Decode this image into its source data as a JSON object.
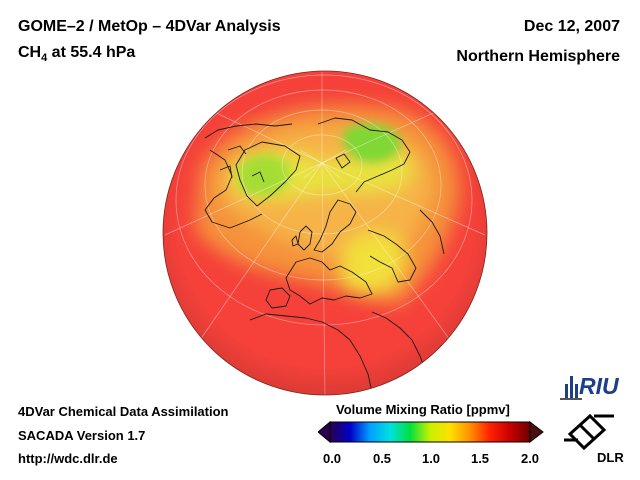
{
  "header": {
    "title_line1": "GOME–2 / MetOp – 4DVar Analysis",
    "species": "CH",
    "species_sub": "4",
    "level_text": " at 55.4 hPa",
    "date": "Dec 12, 2007",
    "region": "Northern Hemisphere"
  },
  "footer": {
    "line1": "4DVar Chemical Data Assimilation",
    "line2": "SACADA Version 1.7",
    "line3": "http://wdc.dlr.de"
  },
  "colorbar": {
    "title": "Volume Mixing Ratio [ppmv]",
    "ticks": [
      "0.0",
      "0.5",
      "1.0",
      "1.5",
      "2.0"
    ],
    "colors": [
      "#2a0050",
      "#0000c8",
      "#00a0ff",
      "#00e0e0",
      "#00e040",
      "#c8f000",
      "#ffe000",
      "#ff9000",
      "#ff2000",
      "#c80000",
      "#700000"
    ]
  },
  "logos": {
    "riu": "RIU",
    "dlr": "DLR"
  },
  "map": {
    "projection": "orthographic, north polar view",
    "colors": {
      "background_field": "#f53c33",
      "high_band": "#f7a535",
      "yellow": "#f2e436",
      "green": "#8fdb2f"
    }
  }
}
